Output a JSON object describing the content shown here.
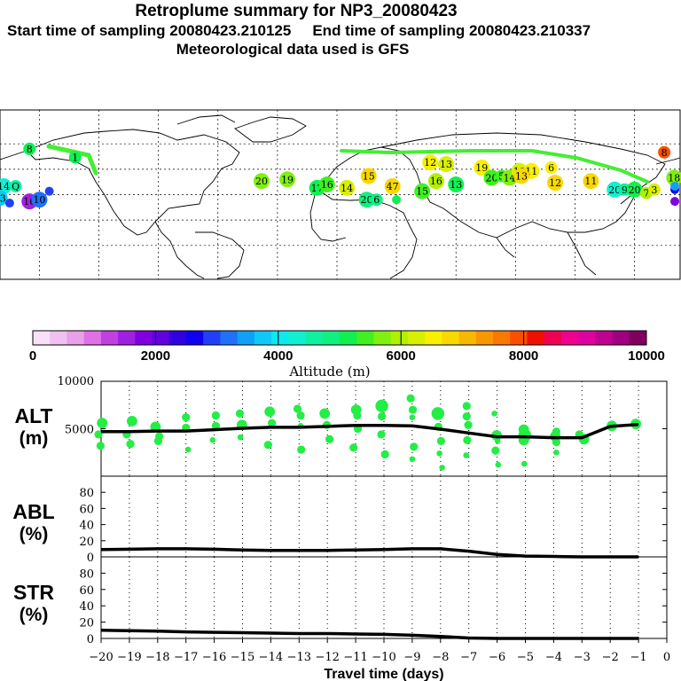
{
  "header": {
    "title": "Retroplume summary for NP3_20080423",
    "start_label": "Start time of sampling 20080423.210125",
    "end_label": "End time of sampling 20080423.210337",
    "met_label": "Meteorological data used is GFS"
  },
  "colorbar": {
    "label": "Altitude (m)",
    "ticks": [
      "0",
      "2000",
      "4000",
      "6000",
      "8000",
      "10000"
    ],
    "tick_values": [
      0,
      2000,
      4000,
      6000,
      8000,
      10000
    ],
    "colors": [
      "#f8e0f8",
      "#f0c0f0",
      "#e8a0e8",
      "#e070e8",
      "#c040e0",
      "#a020e0",
      "#8000e0",
      "#6000e0",
      "#3000e0",
      "#1000f0",
      "#2040f8",
      "#2070f8",
      "#10a0f8",
      "#10c8f8",
      "#10e8f0",
      "#10f0d0",
      "#10f0a0",
      "#10f080",
      "#10f050",
      "#40f020",
      "#80f010",
      "#b0f000",
      "#d8f000",
      "#f8f000",
      "#f8d800",
      "#f8b800",
      "#f89800",
      "#f87800",
      "#f85000",
      "#f01000",
      "#f00050",
      "#f00090",
      "#e000a0",
      "#c00090",
      "#a00080",
      "#800060"
    ]
  },
  "map": {
    "plume_points": [
      {
        "lon": -155,
        "lat": 57,
        "label": "8",
        "alt": 5200
      },
      {
        "lon": -132,
        "lat": 52,
        "label": "1",
        "alt": 5100
      },
      {
        "lon": -168,
        "lat": 35,
        "label": "14",
        "alt": 4200
      },
      {
        "lon": -162,
        "lat": 35,
        "label": "Q",
        "alt": 4500
      },
      {
        "lon": -170,
        "lat": 28,
        "label": "13",
        "alt": 3800
      },
      {
        "lon": -155,
        "lat": 26,
        "label": "16",
        "alt": 1600
      },
      {
        "lon": -150,
        "lat": 27,
        "label": "10",
        "alt": 3200
      },
      {
        "lon": -165,
        "lat": 25,
        "label": "",
        "alt": 2800
      },
      {
        "lon": -145,
        "lat": 32,
        "label": "",
        "alt": 3000
      },
      {
        "lon": -175,
        "lat": 22,
        "label": "",
        "alt": 1500
      },
      {
        "lon": -38,
        "lat": 38,
        "label": "20",
        "alt": 5800
      },
      {
        "lon": -25,
        "lat": 39,
        "label": "19",
        "alt": 5600
      },
      {
        "lon": -10,
        "lat": 34,
        "label": "17",
        "alt": 5200
      },
      {
        "lon": -5,
        "lat": 36,
        "label": "16",
        "alt": 5400
      },
      {
        "lon": 5,
        "lat": 34,
        "label": "14",
        "alt": 6200
      },
      {
        "lon": 16,
        "lat": 41,
        "label": "15",
        "alt": 6900
      },
      {
        "lon": 28,
        "lat": 35,
        "label": "47",
        "alt": 6700
      },
      {
        "lon": 15,
        "lat": 27,
        "label": "20",
        "alt": 4800
      },
      {
        "lon": 20,
        "lat": 27,
        "label": "6",
        "alt": 4900
      },
      {
        "lon": 30,
        "lat": 27,
        "label": "",
        "alt": 5200
      },
      {
        "lon": 43,
        "lat": 32,
        "label": "15",
        "alt": 5500
      },
      {
        "lon": 47,
        "lat": 49,
        "label": "12",
        "alt": 6400
      },
      {
        "lon": 55,
        "lat": 48,
        "label": "13",
        "alt": 6200
      },
      {
        "lon": 60,
        "lat": 36,
        "label": "13",
        "alt": 5000
      },
      {
        "lon": 50,
        "lat": 38,
        "label": "16",
        "alt": 6100
      },
      {
        "lon": 73,
        "lat": 46,
        "label": "19",
        "alt": 6400
      },
      {
        "lon": 78,
        "lat": 40,
        "label": "20",
        "alt": 5300
      },
      {
        "lon": 83,
        "lat": 41,
        "label": "5",
        "alt": 5400
      },
      {
        "lon": 87,
        "lat": 40,
        "label": "14",
        "alt": 5800
      },
      {
        "lon": 92,
        "lat": 44,
        "label": "12",
        "alt": 6300
      },
      {
        "lon": 98,
        "lat": 44,
        "label": "11",
        "alt": 6600
      },
      {
        "lon": 93,
        "lat": 41,
        "label": "13",
        "alt": 6800
      },
      {
        "lon": 108,
        "lat": 46,
        "label": "6",
        "alt": 6400
      },
      {
        "lon": 110,
        "lat": 37,
        "label": "12",
        "alt": 6700
      },
      {
        "lon": 128,
        "lat": 38,
        "label": "11",
        "alt": 6900
      },
      {
        "lon": 140,
        "lat": 33,
        "label": "20",
        "alt": 4300
      },
      {
        "lon": 145,
        "lat": 33,
        "label": "9",
        "alt": 4500
      },
      {
        "lon": 150,
        "lat": 33,
        "label": "20",
        "alt": 5000
      },
      {
        "lon": 156,
        "lat": 31,
        "label": "7",
        "alt": 6000
      },
      {
        "lon": 160,
        "lat": 33,
        "label": "3",
        "alt": 6300
      },
      {
        "lon": 165,
        "lat": 55,
        "label": "8",
        "alt": 7900
      },
      {
        "lon": 170,
        "lat": 40,
        "label": "18",
        "alt": 5800
      },
      {
        "lon": 176,
        "lat": 33,
        "label": "",
        "alt": 2600
      },
      {
        "lon": 180,
        "lat": 35,
        "label": "",
        "alt": 3500
      },
      {
        "lon": 184,
        "lat": 26,
        "label": "",
        "alt": 1800
      }
    ]
  },
  "chart_data": [
    {
      "type": "scatter+line",
      "panel": "ALT",
      "ylabel_line1": "ALT",
      "ylabel_line2": "(m)",
      "ylim": [
        0,
        10000
      ],
      "yticks": [
        "10000",
        "5000"
      ],
      "ytick_values": [
        10000,
        5000
      ],
      "xlim": [
        -20,
        0
      ],
      "median_line": {
        "x": [
          -20,
          -19,
          -18,
          -17,
          -16,
          -15,
          -14,
          -13,
          -12,
          -11,
          -10,
          -9,
          -8,
          -7,
          -6,
          -5,
          -4,
          -3,
          -2,
          -1
        ],
        "y": [
          4700,
          4700,
          4750,
          4750,
          4900,
          5050,
          5150,
          5150,
          5250,
          5350,
          5350,
          5300,
          4950,
          4550,
          4150,
          4150,
          4050,
          4050,
          5250,
          5450
        ]
      },
      "points": [
        {
          "x": -20,
          "y": 5600,
          "s": 3
        },
        {
          "x": -20,
          "y": 4400,
          "s": 2
        },
        {
          "x": -20,
          "y": 3200,
          "s": 2
        },
        {
          "x": -19,
          "y": 5800,
          "s": 3
        },
        {
          "x": -19,
          "y": 4400,
          "s": 2
        },
        {
          "x": -19,
          "y": 3400,
          "s": 2
        },
        {
          "x": -18,
          "y": 5200,
          "s": 3
        },
        {
          "x": -18,
          "y": 4200,
          "s": 2
        },
        {
          "x": -18,
          "y": 3700,
          "s": 2
        },
        {
          "x": -17,
          "y": 6200,
          "s": 2
        },
        {
          "x": -17,
          "y": 5100,
          "s": 2
        },
        {
          "x": -17,
          "y": 2800,
          "s": 1
        },
        {
          "x": -16,
          "y": 6400,
          "s": 2
        },
        {
          "x": -16,
          "y": 5300,
          "s": 2
        },
        {
          "x": -16,
          "y": 3800,
          "s": 1
        },
        {
          "x": -15,
          "y": 6600,
          "s": 2
        },
        {
          "x": -15,
          "y": 5400,
          "s": 3
        },
        {
          "x": -15,
          "y": 4100,
          "s": 1
        },
        {
          "x": -14,
          "y": 6800,
          "s": 3
        },
        {
          "x": -14,
          "y": 5600,
          "s": 2
        },
        {
          "x": -14,
          "y": 3300,
          "s": 2
        },
        {
          "x": -13,
          "y": 7100,
          "s": 2
        },
        {
          "x": -13,
          "y": 6400,
          "s": 2
        },
        {
          "x": -13,
          "y": 5300,
          "s": 1
        },
        {
          "x": -13,
          "y": 2800,
          "s": 2
        },
        {
          "x": -12,
          "y": 6600,
          "s": 3
        },
        {
          "x": -12,
          "y": 5400,
          "s": 2
        },
        {
          "x": -12,
          "y": 3900,
          "s": 2
        },
        {
          "x": -11,
          "y": 7000,
          "s": 3
        },
        {
          "x": -11,
          "y": 6400,
          "s": 2
        },
        {
          "x": -11,
          "y": 5000,
          "s": 2
        },
        {
          "x": -11,
          "y": 3000,
          "s": 2
        },
        {
          "x": -10,
          "y": 7400,
          "s": 4
        },
        {
          "x": -10,
          "y": 6300,
          "s": 2
        },
        {
          "x": -10,
          "y": 4400,
          "s": 2
        },
        {
          "x": -10,
          "y": 2300,
          "s": 2
        },
        {
          "x": -9,
          "y": 8200,
          "s": 2
        },
        {
          "x": -9,
          "y": 7000,
          "s": 2
        },
        {
          "x": -9,
          "y": 6200,
          "s": 1
        },
        {
          "x": -9,
          "y": 3100,
          "s": 2
        },
        {
          "x": -9,
          "y": 1800,
          "s": 1
        },
        {
          "x": -8,
          "y": 6600,
          "s": 4
        },
        {
          "x": -8,
          "y": 5200,
          "s": 2
        },
        {
          "x": -8,
          "y": 3700,
          "s": 2
        },
        {
          "x": -8,
          "y": 2400,
          "s": 1
        },
        {
          "x": -8,
          "y": 900,
          "s": 1
        },
        {
          "x": -7,
          "y": 7400,
          "s": 2
        },
        {
          "x": -7,
          "y": 6300,
          "s": 2
        },
        {
          "x": -7,
          "y": 5400,
          "s": 2
        },
        {
          "x": -7,
          "y": 3800,
          "s": 2
        },
        {
          "x": -7,
          "y": 2200,
          "s": 1
        },
        {
          "x": -6,
          "y": 6600,
          "s": 1
        },
        {
          "x": -6,
          "y": 4300,
          "s": 3
        },
        {
          "x": -6,
          "y": 3700,
          "s": 1
        },
        {
          "x": -6,
          "y": 2700,
          "s": 2
        },
        {
          "x": -6,
          "y": 1200,
          "s": 1
        },
        {
          "x": -5,
          "y": 4900,
          "s": 3
        },
        {
          "x": -5,
          "y": 4300,
          "s": 4
        },
        {
          "x": -5,
          "y": 3800,
          "s": 3
        },
        {
          "x": -5,
          "y": 1300,
          "s": 1
        },
        {
          "x": -4,
          "y": 4700,
          "s": 2
        },
        {
          "x": -4,
          "y": 4200,
          "s": 3
        },
        {
          "x": -4,
          "y": 3600,
          "s": 2
        },
        {
          "x": -4,
          "y": 2500,
          "s": 1
        },
        {
          "x": -3,
          "y": 4400,
          "s": 2
        },
        {
          "x": -3,
          "y": 3900,
          "s": 3
        },
        {
          "x": -2,
          "y": 5300,
          "s": 3
        },
        {
          "x": -1,
          "y": 5500,
          "s": 3
        }
      ]
    },
    {
      "type": "line",
      "panel": "ABL",
      "ylabel_line1": "ABL",
      "ylabel_line2": "(%)",
      "ylim": [
        0,
        100
      ],
      "yticks": [
        "80",
        "60",
        "40",
        "20",
        "0"
      ],
      "ytick_values": [
        80,
        60,
        40,
        20,
        0
      ],
      "xlim": [
        -20,
        0
      ],
      "x": [
        -20,
        -19,
        -18,
        -17,
        -16,
        -15,
        -14,
        -13,
        -12,
        -11,
        -10,
        -9,
        -8,
        -7,
        -6,
        -5,
        -4,
        -3,
        -2,
        -1
      ],
      "y": [
        9,
        9.5,
        10,
        10,
        9.5,
        8.5,
        8,
        8,
        8,
        8.5,
        9,
        10,
        10,
        7,
        3,
        1,
        0.5,
        0,
        0,
        0
      ]
    },
    {
      "type": "line",
      "panel": "STR",
      "ylabel_line1": "STR",
      "ylabel_line2": "(%)",
      "ylim": [
        0,
        100
      ],
      "yticks": [
        "80",
        "60",
        "40",
        "20",
        "0"
      ],
      "ytick_values": [
        80,
        60,
        40,
        20,
        0
      ],
      "xlim": [
        -20,
        0
      ],
      "x": [
        -20,
        -19,
        -18,
        -17,
        -16,
        -15,
        -14,
        -13,
        -12,
        -11,
        -10,
        -9,
        -8,
        -7,
        -6,
        -5,
        -4,
        -3,
        -2,
        -1
      ],
      "y": [
        10,
        9.5,
        9,
        8,
        7.5,
        7,
        6.5,
        6,
        6,
        5.5,
        5,
        4,
        2.5,
        0.5,
        0,
        0,
        0,
        0,
        0,
        0
      ]
    }
  ],
  "xaxis": {
    "title": "Travel time (days)",
    "ticks": [
      "−20",
      "−19",
      "−18",
      "−17",
      "−16",
      "−15",
      "−14",
      "−13",
      "−12",
      "−11",
      "−10",
      "−9",
      "−8",
      "−7",
      "−6",
      "−5",
      "−4",
      "−3",
      "−2",
      "−1",
      "0"
    ],
    "tick_values": [
      -20,
      -19,
      -18,
      -17,
      -16,
      -15,
      -14,
      -13,
      -12,
      -11,
      -10,
      -9,
      -8,
      -7,
      -6,
      -5,
      -4,
      -3,
      -2,
      -1,
      0
    ]
  }
}
